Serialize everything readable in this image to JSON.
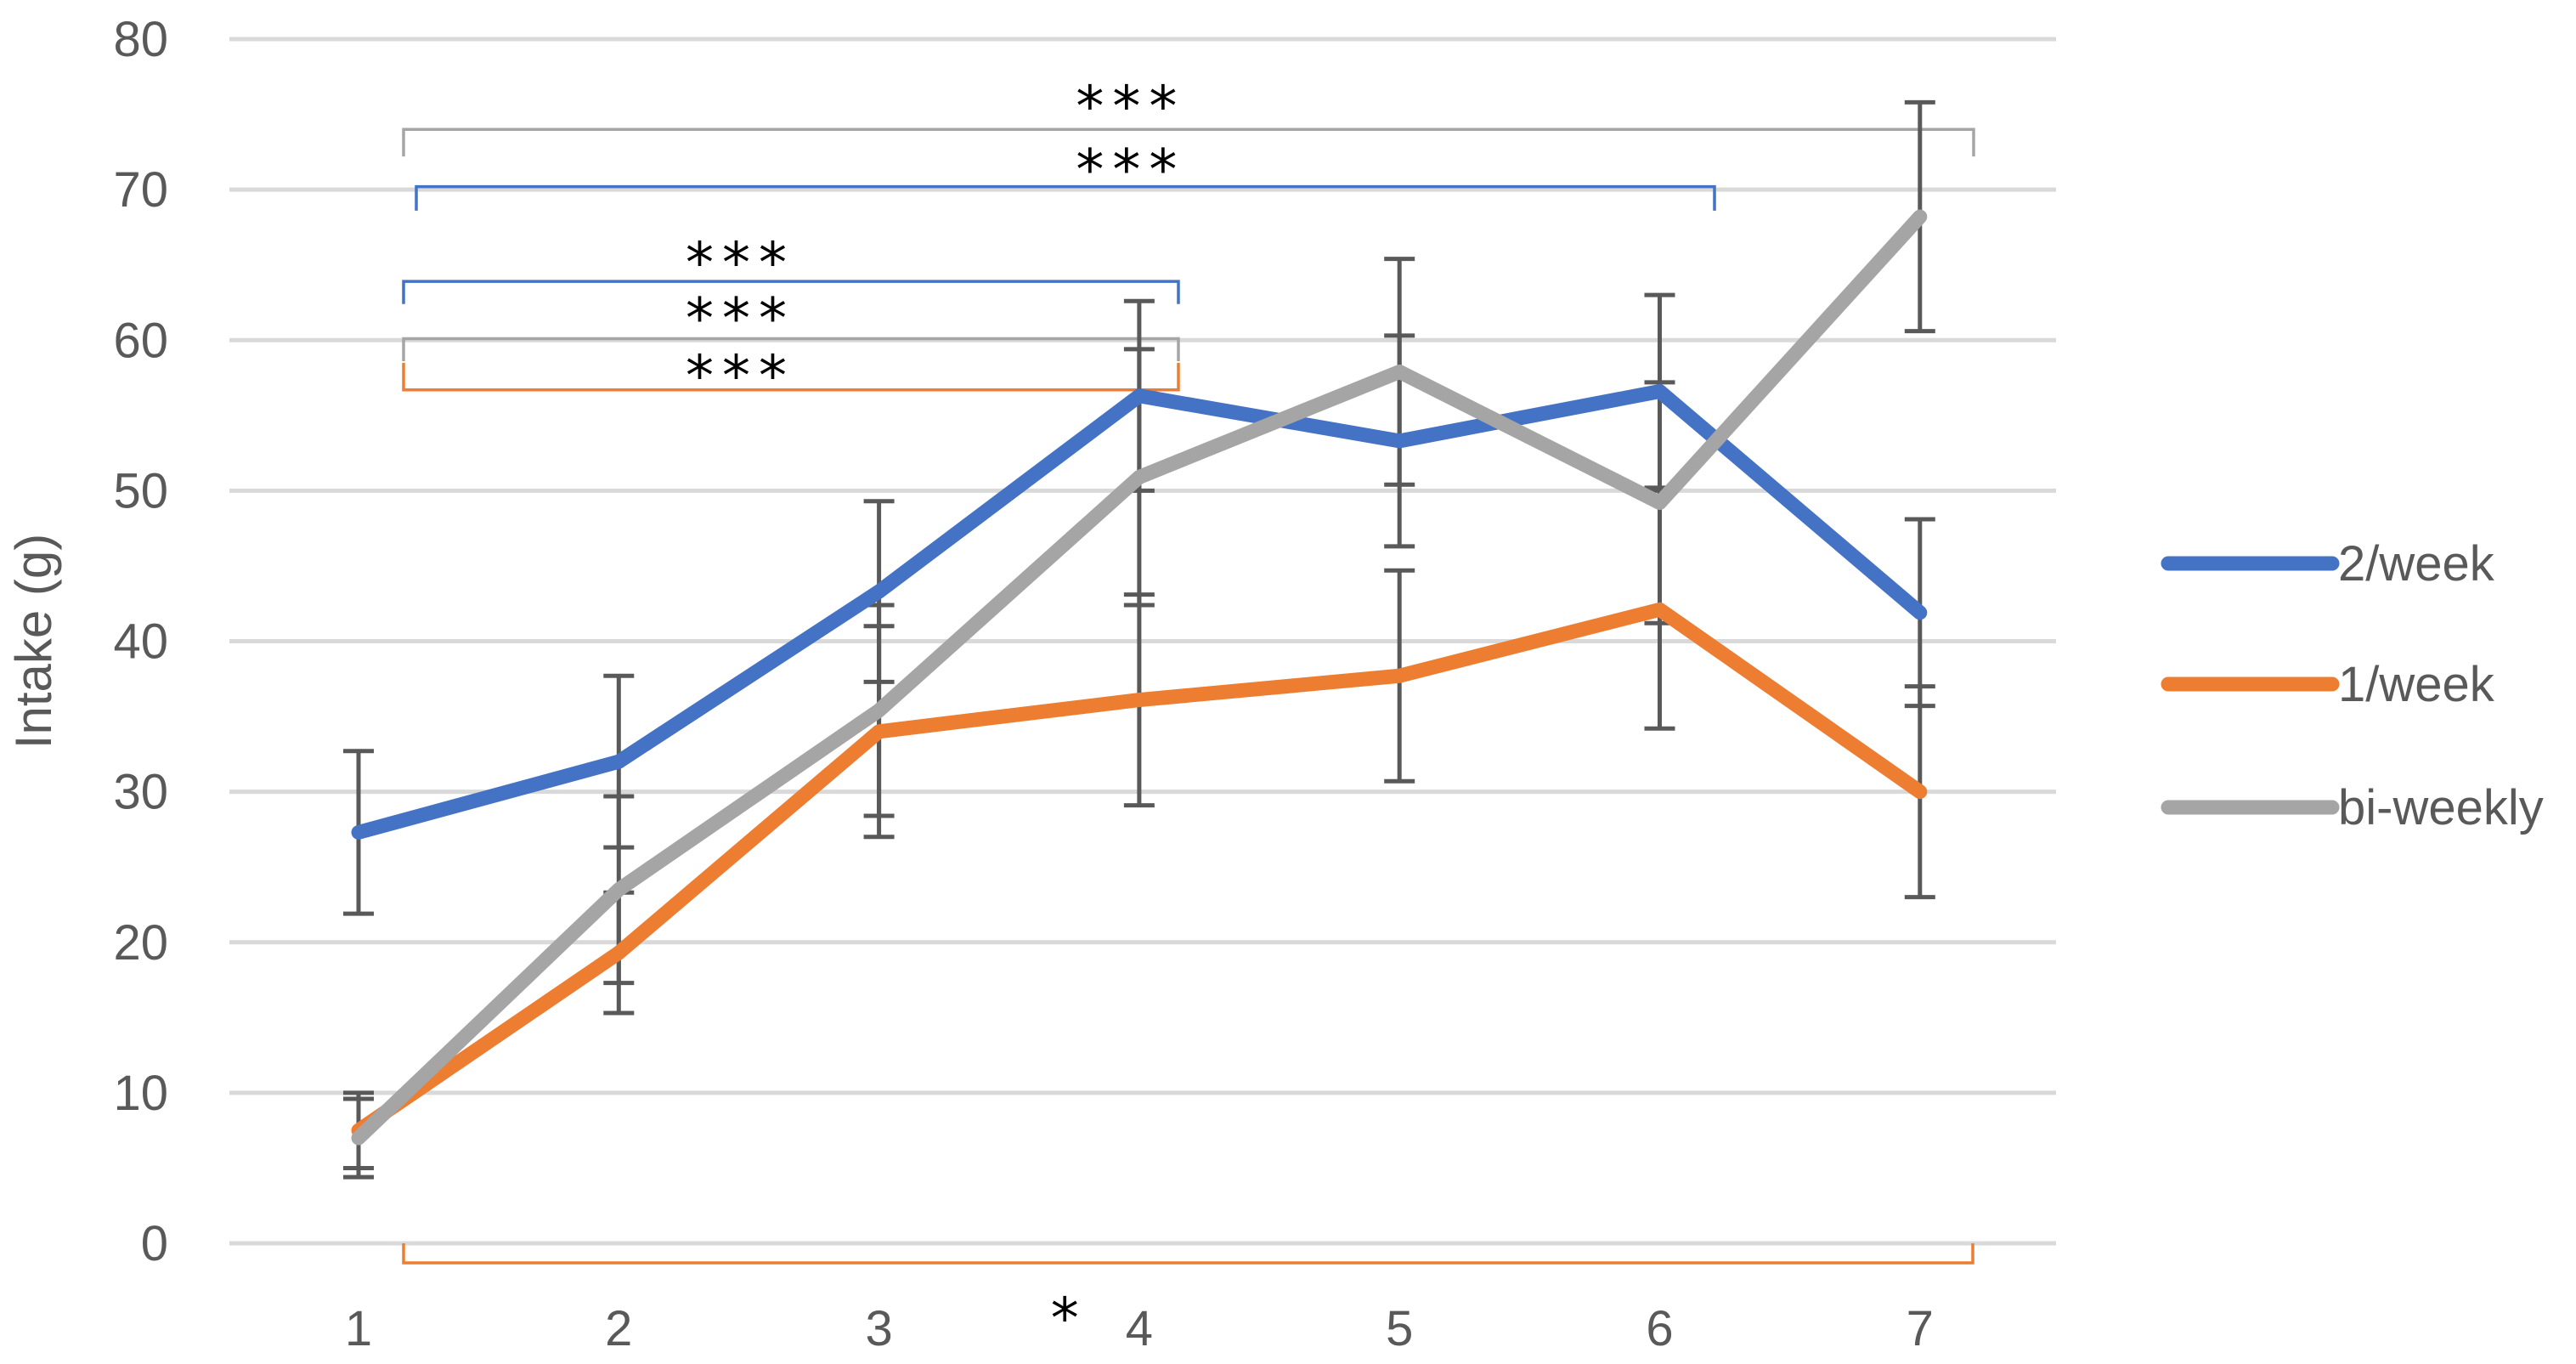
{
  "chart_data": {
    "type": "line",
    "title": "",
    "xlabel": "",
    "ylabel": "Intake (g)",
    "categories": [
      "1",
      "2",
      "3",
      "4",
      "5",
      "6",
      "7"
    ],
    "x": [
      1,
      2,
      3,
      4,
      5,
      6,
      7
    ],
    "ylim": [
      0,
      80
    ],
    "yticks": [
      "0",
      "10",
      "20",
      "30",
      "40",
      "50",
      "60",
      "70",
      "80"
    ],
    "grid": "horizontal",
    "legend_position": "right",
    "series": [
      {
        "name": "2/week",
        "color": "#4472C4",
        "values": [
          27.3,
          32.0,
          43.3,
          56.3,
          53.3,
          56.6,
          41.9
        ],
        "error": [
          5.4,
          5.7,
          6.0,
          6.3,
          7.0,
          6.4,
          6.2
        ]
      },
      {
        "name": "1/week",
        "color": "#ED7D31",
        "values": [
          7.5,
          19.3,
          34.0,
          36.1,
          37.7,
          42.1,
          30.0
        ],
        "error": [
          2.5,
          4.0,
          7.0,
          7.0,
          7.0,
          7.9,
          7.0
        ]
      },
      {
        "name": "bi-weekly",
        "color": "#A5A5A5",
        "values": [
          7.0,
          23.5,
          35.4,
          50.9,
          57.9,
          49.2,
          68.2
        ],
        "error": [
          2.6,
          6.2,
          7.0,
          8.5,
          7.5,
          8.0,
          7.6
        ]
      }
    ],
    "annotations": [
      {
        "text": "***",
        "from_x": 1,
        "to_x": 7,
        "level": 74.0,
        "drop": 1.8,
        "color": "#A5A5A5",
        "label_level": 75.6,
        "label_x": 4.0
      },
      {
        "text": "***",
        "from_x": 1,
        "to_x": 6,
        "level": 70.2,
        "drop": 1.6,
        "color": "#4472C4",
        "label_level": 71.4,
        "label_x": 4.0
      },
      {
        "text": "***",
        "from_x": 1,
        "to_x": 4,
        "level": 63.9,
        "drop": 1.5,
        "color": "#4472C4",
        "label_level": 65.2,
        "label_x": 2.5
      },
      {
        "text": "***",
        "from_x": 1,
        "to_x": 4,
        "level": 60.1,
        "drop": 1.5,
        "color": "#A5A5A5",
        "label_level": 61.5,
        "label_x": 2.5
      },
      {
        "text": "***",
        "from_x": 1,
        "to_x": 4,
        "level": 56.7,
        "drop": -1.8,
        "color": "#ED7D31",
        "label_level": 57.7,
        "label_x": 2.5
      },
      {
        "text": "*",
        "from_x": 1,
        "to_x": 7,
        "level": -1.3,
        "drop": -1.3,
        "color": "#ED7D31",
        "label_level": -4.9,
        "label_x": 3.73
      }
    ]
  }
}
